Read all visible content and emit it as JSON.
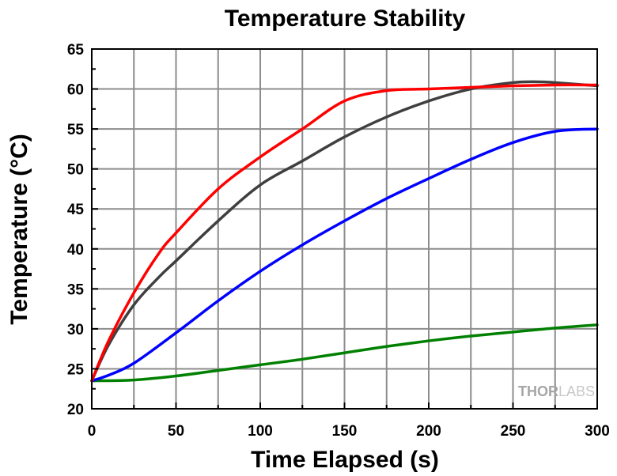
{
  "chart_data": {
    "type": "line",
    "title": "Temperature Stability",
    "xlabel": "Time Elapsed (s)",
    "ylabel": "Temperature (°C)",
    "xlim": [
      0,
      300
    ],
    "ylim": [
      20,
      65
    ],
    "xticks": [
      0,
      50,
      100,
      150,
      200,
      250,
      300
    ],
    "yticks": [
      20,
      25,
      30,
      35,
      40,
      45,
      50,
      55,
      60,
      65
    ],
    "grid": true,
    "legend": "none",
    "series": [
      {
        "color": "#ff0000",
        "x": [
          0,
          10,
          25,
          40,
          50,
          75,
          100,
          125,
          150,
          175,
          200,
          225,
          250,
          275,
          300
        ],
        "y": [
          23.5,
          28.5,
          34.5,
          39.5,
          42.0,
          47.5,
          51.5,
          55.0,
          58.5,
          59.8,
          60.0,
          60.2,
          60.4,
          60.5,
          60.5
        ]
      },
      {
        "color": "#3f3f3f",
        "x": [
          0,
          10,
          25,
          40,
          50,
          75,
          100,
          125,
          150,
          175,
          200,
          225,
          250,
          265,
          275,
          300
        ],
        "y": [
          23.5,
          28.0,
          33.0,
          36.5,
          38.5,
          43.5,
          48.0,
          51.0,
          54.0,
          56.5,
          58.5,
          60.0,
          60.8,
          60.9,
          60.8,
          60.4
        ]
      },
      {
        "color": "#0000ff",
        "x": [
          0,
          10,
          25,
          50,
          75,
          100,
          125,
          150,
          175,
          200,
          225,
          250,
          275,
          300
        ],
        "y": [
          23.5,
          24.2,
          25.7,
          29.5,
          33.5,
          37.2,
          40.5,
          43.5,
          46.3,
          48.8,
          51.2,
          53.3,
          54.7,
          55.0
        ]
      },
      {
        "color": "#008000",
        "x": [
          0,
          25,
          50,
          75,
          100,
          125,
          150,
          175,
          200,
          225,
          250,
          275,
          300
        ],
        "y": [
          23.5,
          23.6,
          24.1,
          24.8,
          25.5,
          26.2,
          27.0,
          27.8,
          28.5,
          29.1,
          29.6,
          30.1,
          30.5
        ]
      }
    ]
  },
  "watermark": {
    "part1": "THOR",
    "part2": "LABS"
  }
}
